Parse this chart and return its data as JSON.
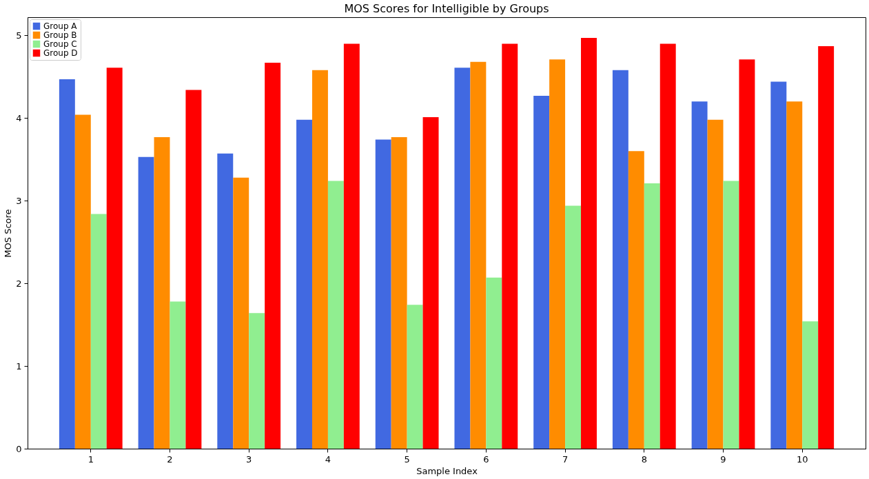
{
  "chart_data": {
    "type": "bar",
    "title": "MOS Scores for Intelligible by Groups",
    "xlabel": "Sample Index",
    "ylabel": "MOS Score",
    "categories": [
      "1",
      "2",
      "3",
      "4",
      "5",
      "6",
      "7",
      "8",
      "9",
      "10"
    ],
    "series": [
      {
        "name": "Group A",
        "color": "#4169e1",
        "values": [
          4.47,
          3.53,
          3.57,
          3.98,
          3.74,
          4.61,
          4.27,
          4.58,
          4.2,
          4.44
        ]
      },
      {
        "name": "Group B",
        "color": "#ff8c00",
        "values": [
          4.04,
          3.77,
          3.28,
          4.58,
          3.77,
          4.68,
          4.71,
          3.6,
          3.98,
          4.2
        ]
      },
      {
        "name": "Group C",
        "color": "#90ee90",
        "values": [
          2.84,
          1.78,
          1.64,
          3.24,
          1.74,
          2.07,
          2.94,
          3.21,
          3.24,
          1.54
        ]
      },
      {
        "name": "Group D",
        "color": "#ff0000",
        "values": [
          4.61,
          4.34,
          4.67,
          4.9,
          4.01,
          4.9,
          4.97,
          4.9,
          4.71,
          4.87
        ]
      }
    ],
    "ylim": [
      0,
      5.22
    ],
    "yticks": [
      0,
      1,
      2,
      3,
      4,
      5
    ],
    "grid": false,
    "legend": "top left"
  }
}
